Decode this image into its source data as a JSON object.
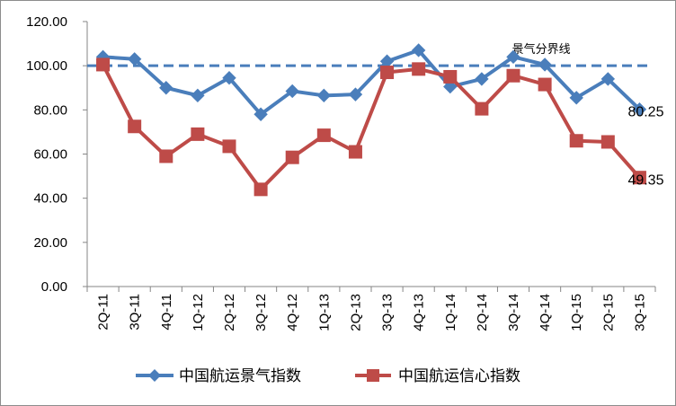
{
  "chart_data": {
    "type": "line",
    "title": "",
    "xlabel": "",
    "ylabel": "",
    "categories": [
      "2Q-11",
      "3Q-11",
      "4Q-11",
      "1Q-12",
      "2Q-12",
      "3Q-12",
      "4Q-12",
      "1Q-13",
      "2Q-13",
      "3Q-13",
      "4Q-13",
      "1Q-14",
      "2Q-14",
      "3Q-14",
      "4Q-14",
      "1Q-15",
      "2Q-15",
      "3Q-15"
    ],
    "ylim": [
      0,
      120
    ],
    "yticks": [
      "0.00",
      "20.00",
      "40.00",
      "60.00",
      "80.00",
      "100.00",
      "120.00"
    ],
    "grid": false,
    "legend_position": "bottom",
    "series": [
      {
        "name": "中国航运景气指数",
        "color": "#4a7ebb",
        "marker": "diamond",
        "values": [
          104.0,
          103.0,
          90.0,
          86.5,
          94.5,
          78.0,
          88.5,
          86.5,
          87.0,
          102.0,
          107.0,
          90.5,
          94.0,
          104.0,
          100.5,
          85.5,
          94.0,
          80.25
        ]
      },
      {
        "name": "中国航运信心指数",
        "color": "#be4b48",
        "marker": "square",
        "values": [
          100.5,
          72.5,
          59.0,
          69.0,
          63.5,
          44.0,
          58.5,
          68.5,
          61.0,
          97.0,
          98.5,
          95.0,
          80.5,
          95.5,
          91.5,
          66.0,
          65.5,
          49.35
        ]
      }
    ],
    "reference_line": {
      "value": 100,
      "label": "景气分界线",
      "color": "#4a7ebb"
    },
    "data_labels": [
      {
        "series": 0,
        "index": 17,
        "text": "80.25"
      },
      {
        "series": 1,
        "index": 17,
        "text": "49.35"
      }
    ]
  }
}
